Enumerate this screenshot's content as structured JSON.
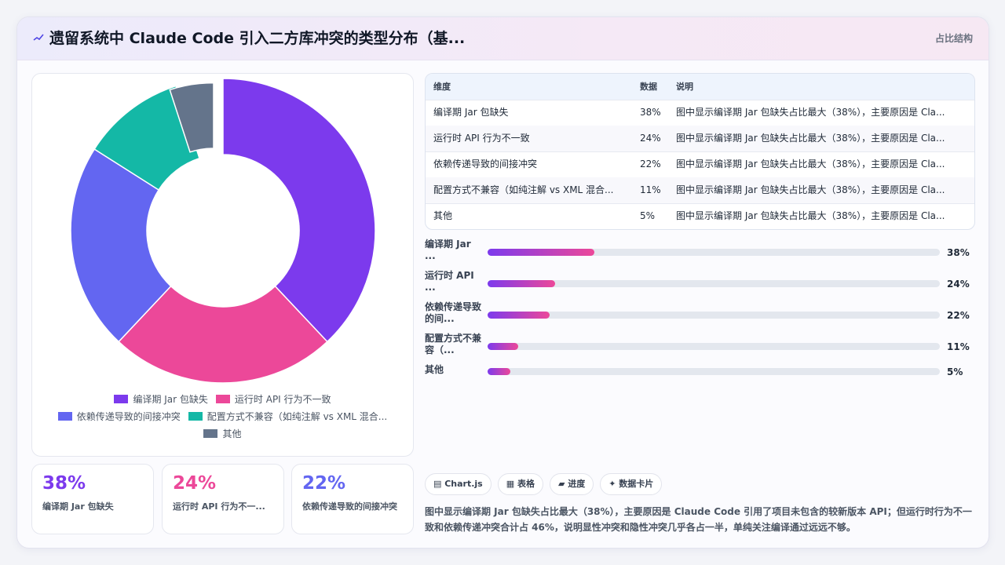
{
  "header": {
    "title": "遗留系统中 Claude Code 引入二方库冲突的类型分布（基...",
    "right_label": "占比结构"
  },
  "chart_data": {
    "type": "pie",
    "categories": [
      "编译期 Jar 包缺失",
      "运行时 API 行为不一致",
      "依赖传递导致的间接冲突",
      "配置方式不兼容（如纯注解 vs XML 混合...",
      "其他"
    ],
    "values": [
      38,
      24,
      22,
      11,
      5
    ],
    "colors": [
      "#7c3aed",
      "#ec4899",
      "#6366f1",
      "#14b8a6",
      "#64748b"
    ],
    "legend_position": "bottom",
    "donut": true
  },
  "stats": [
    {
      "value": "38%",
      "label": "编译期 Jar 包缺失",
      "color": "#7c3aed"
    },
    {
      "value": "24%",
      "label": "运行时 API 行为不一...",
      "color": "#ec4899"
    },
    {
      "value": "22%",
      "label": "依赖传递导致的间接冲突",
      "color": "#6366f1"
    }
  ],
  "table": {
    "headers": [
      "维度",
      "数据",
      "说明"
    ],
    "rows": [
      [
        "编译期 Jar 包缺失",
        "38%",
        "图中显示编译期 Jar 包缺失占比最大（38%），主要原因是 Cla..."
      ],
      [
        "运行时 API 行为不一致",
        "24%",
        "图中显示编译期 Jar 包缺失占比最大（38%），主要原因是 Cla..."
      ],
      [
        "依赖传递导致的间接冲突",
        "22%",
        "图中显示编译期 Jar 包缺失占比最大（38%），主要原因是 Cla..."
      ],
      [
        "配置方式不兼容（如纯注解 vs XML 混合...",
        "11%",
        "图中显示编译期 Jar 包缺失占比最大（38%），主要原因是 Cla..."
      ],
      [
        "其他",
        "5%",
        "图中显示编译期 Jar 包缺失占比最大（38%），主要原因是 Cla..."
      ]
    ]
  },
  "bars": [
    {
      "label": "编译期 Jar ...",
      "pct_text": "38%",
      "fraction": 0.236
    },
    {
      "label": "运行时 API ...",
      "pct_text": "24%",
      "fraction": 0.149
    },
    {
      "label": "依赖传递导致的间...",
      "pct_text": "22%",
      "fraction": 0.137
    },
    {
      "label": "配置方式不兼容（...",
      "pct_text": "11%",
      "fraction": 0.068
    },
    {
      "label": "其他",
      "pct_text": "5%",
      "fraction": 0.05
    }
  ],
  "chips": [
    "▤ Chart.js",
    "▦ 表格",
    "▰ 进度",
    "✦ 数据卡片"
  ],
  "summary": "图中显示编译期 Jar 包缺失占比最大（38%），主要原因是 Claude Code 引用了项目未包含的较新版本 API；但运行时行为不一致和依赖传递冲突合计占 46%，说明显性冲突和隐性冲突几乎各占一半，单纯关注编译通过远远不够。"
}
